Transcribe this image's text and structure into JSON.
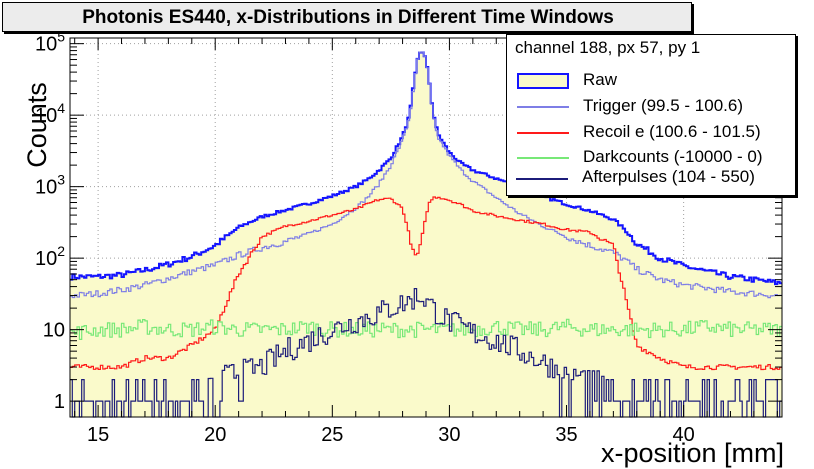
{
  "title": "Photonis ES440,   x-Distributions in Different Time Windows",
  "legend": {
    "header": "channel 188, px 57, py 1",
    "entries": [
      {
        "label": "Raw",
        "color": "#1414ff",
        "fill": "#fafacb"
      },
      {
        "label": "Trigger (99.5 - 100.6)",
        "color": "#7e7ee6"
      },
      {
        "label": "Recoil e (100.6 - 101.5)",
        "color": "#ff1a1a"
      },
      {
        "label": "Darkcounts (-10000 - 0)",
        "color": "#77e877"
      },
      {
        "label": "Afterpulses (104 - 550)",
        "color": "#1c1c7a"
      }
    ]
  },
  "chart_data": {
    "type": "line",
    "title": "Photonis ES440,   x-Distributions in Different Time Windows",
    "xlabel": "x-position  [mm]",
    "ylabel": "Counts",
    "xlim": [
      13.8,
      44.2
    ],
    "ylim": [
      0.6,
      120000
    ],
    "yscale": "log",
    "x_ticks": [
      "15",
      "20",
      "25",
      "30",
      "35",
      "40"
    ],
    "y_ticks": [
      "1",
      "10",
      "10^2",
      "10^3",
      "10^4",
      "10^5"
    ],
    "grid": true,
    "legend_position": "top-right",
    "x": [
      14.0,
      15.0,
      16.0,
      17.0,
      18.0,
      19.0,
      20.0,
      21.0,
      22.0,
      23.0,
      24.0,
      25.0,
      26.0,
      26.5,
      27.0,
      27.5,
      28.0,
      28.3,
      28.5,
      28.7,
      28.9,
      29.1,
      29.3,
      29.5,
      30.0,
      30.5,
      31.0,
      32.0,
      33.0,
      34.0,
      35.0,
      36.0,
      37.0,
      37.5,
      38.0,
      39.0,
      40.0,
      41.0,
      42.0,
      43.0,
      44.0
    ],
    "series": [
      {
        "name": "Raw",
        "values": [
          55,
          55,
          58,
          68,
          82,
          105,
          150,
          270,
          380,
          470,
          580,
          740,
          1000,
          1250,
          1700,
          2500,
          5000,
          10000,
          30000,
          75000,
          78000,
          38000,
          11000,
          5500,
          3000,
          2100,
          1700,
          1300,
          1000,
          730,
          570,
          460,
          350,
          250,
          160,
          100,
          78,
          65,
          55,
          50,
          45
        ]
      },
      {
        "name": "Trigger (99.5 - 100.6)",
        "values": [
          30,
          32,
          36,
          42,
          52,
          65,
          80,
          110,
          140,
          170,
          220,
          300,
          500,
          700,
          1100,
          2000,
          4500,
          9500,
          29000,
          74000,
          77000,
          37000,
          10000,
          5000,
          2700,
          1700,
          1200,
          700,
          420,
          280,
          200,
          150,
          120,
          95,
          70,
          50,
          42,
          38,
          34,
          32,
          30
        ]
      },
      {
        "name": "Recoil e (100.6 - 101.5)",
        "values": [
          3,
          3,
          3,
          4,
          4,
          6,
          10,
          60,
          200,
          280,
          330,
          400,
          480,
          570,
          660,
          680,
          500,
          200,
          105,
          120,
          260,
          560,
          700,
          720,
          650,
          560,
          460,
          390,
          340,
          300,
          250,
          230,
          150,
          30,
          6,
          4,
          3,
          3,
          3,
          3,
          3
        ]
      },
      {
        "name": "Darkcounts (-10000 - 0)",
        "values": [
          9,
          10,
          10,
          11,
          10,
          10,
          11,
          10,
          10,
          10,
          11,
          10,
          10,
          10,
          10,
          10,
          10,
          10,
          10,
          10,
          10,
          10,
          10,
          10,
          10,
          10,
          10,
          11,
          10,
          10,
          11,
          10,
          10,
          10,
          10,
          10,
          10,
          11,
          10,
          10,
          10
        ]
      },
      {
        "name": "Afterpulses (104 - 550)",
        "values": [
          1,
          1,
          1,
          1,
          1.2,
          1.5,
          2,
          2.5,
          3,
          5,
          7,
          10,
          13,
          15,
          17,
          20,
          23,
          25,
          28,
          30,
          28,
          24,
          20,
          17,
          13,
          11,
          9,
          7,
          5,
          3.5,
          2.5,
          2,
          1.5,
          1.3,
          1.2,
          1,
          1,
          1,
          1,
          1,
          1
        ]
      }
    ]
  }
}
